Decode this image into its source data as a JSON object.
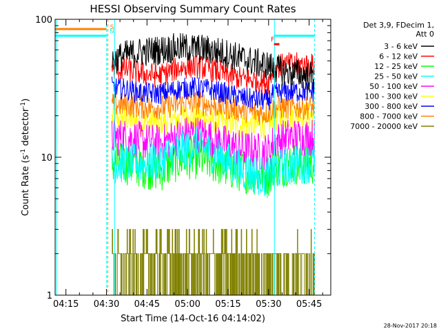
{
  "chart_data": {
    "type": "line",
    "title": "HESSI Observing Summary Count Rates",
    "xlabel": "Start Time (14-Oct-16 04:14:02)",
    "ylabel": "Count Rate (s⁻¹ detector⁻¹)",
    "x_scale": "time",
    "y_scale": "log",
    "xlim": [
      "04:11",
      "05:53"
    ],
    "ylim": [
      1,
      100
    ],
    "x_ticks": [
      "04:15",
      "04:30",
      "04:45",
      "05:00",
      "05:15",
      "05:30",
      "05:45"
    ],
    "y_ticks": [
      "1",
      "10",
      "100"
    ],
    "grid": false,
    "legend_title": [
      "Det 3,9, FDecim 1,",
      "Att 0"
    ],
    "legend_position": "top-right",
    "series": [
      {
        "name": "3 - 6 keV",
        "color": "#000000",
        "times": [
          "04:32",
          "04:37",
          "04:43",
          "04:50",
          "04:56",
          "05:02",
          "05:08",
          "05:14",
          "05:20",
          "05:26",
          "05:30",
          "05:32",
          "05:36",
          "05:42",
          "05:47"
        ],
        "values": [
          50,
          55,
          58,
          60,
          62,
          62,
          60,
          57,
          52,
          48,
          46,
          44,
          42,
          40,
          38
        ]
      },
      {
        "name": "6 - 12 keV",
        "color": "#ff0000",
        "times": [
          "04:32",
          "04:38",
          "04:44",
          "04:50",
          "04:56",
          "05:02",
          "05:08",
          "05:14",
          "05:20",
          "05:26",
          "05:30",
          "05:32",
          "05:37",
          "05:42",
          "05:47"
        ],
        "values": [
          44,
          43,
          40,
          39,
          44,
          46,
          44,
          40,
          37,
          36,
          35,
          45,
          47,
          47,
          46
        ]
      },
      {
        "name": "12 - 25 keV",
        "color": "#00ff00",
        "times": [
          "04:32",
          "04:38",
          "04:44",
          "04:50",
          "04:56",
          "05:02",
          "05:08",
          "05:14",
          "05:20",
          "05:26",
          "05:30",
          "05:32",
          "05:37",
          "05:42",
          "05:47"
        ],
        "values": [
          9,
          9,
          8.5,
          8,
          9.5,
          10,
          9.5,
          8.5,
          8,
          7.5,
          7.5,
          8.5,
          9,
          9,
          9
        ]
      },
      {
        "name": "25 - 50 keV",
        "color": "#00ffff",
        "times": [
          "04:32",
          "04:38",
          "04:44",
          "04:50",
          "04:56",
          "05:02",
          "05:08",
          "05:14",
          "05:20",
          "05:26",
          "05:30",
          "05:32",
          "05:37",
          "05:42",
          "05:47"
        ],
        "values": [
          9,
          9,
          9,
          9.5,
          11,
          12,
          11,
          9.5,
          8,
          7.5,
          7,
          8,
          8.5,
          9,
          9
        ]
      },
      {
        "name": "50 - 100 keV",
        "color": "#ff00ff",
        "times": [
          "04:32",
          "04:38",
          "04:44",
          "04:50",
          "04:56",
          "05:02",
          "05:08",
          "05:14",
          "05:20",
          "05:26",
          "05:30",
          "05:32",
          "05:37",
          "05:42",
          "05:47"
        ],
        "values": [
          14,
          14,
          13,
          12.5,
          14,
          15,
          14,
          12.5,
          11.5,
          11,
          11,
          13,
          14,
          14,
          14
        ]
      },
      {
        "name": "100 - 300 keV",
        "color": "#ffff00",
        "times": [
          "04:32",
          "04:38",
          "04:44",
          "04:50",
          "04:56",
          "05:02",
          "05:08",
          "05:14",
          "05:20",
          "05:26",
          "05:30",
          "05:32",
          "05:37",
          "05:42",
          "05:47"
        ],
        "values": [
          19,
          19,
          18,
          18,
          19,
          19.5,
          19,
          18,
          17,
          17,
          17,
          19,
          20,
          20,
          20
        ]
      },
      {
        "name": "300 - 800 keV",
        "color": "#0000ff",
        "times": [
          "04:32",
          "04:38",
          "04:44",
          "04:50",
          "04:56",
          "05:02",
          "05:08",
          "05:14",
          "05:20",
          "05:26",
          "05:30",
          "05:32",
          "05:37",
          "05:42",
          "05:47"
        ],
        "values": [
          32,
          31,
          29,
          29,
          31,
          32,
          31,
          29,
          27,
          26,
          26,
          29,
          30,
          30,
          30
        ]
      },
      {
        "name": "800 - 7000 keV",
        "color": "#ff8000",
        "times": [
          "04:32",
          "04:38",
          "04:44",
          "04:50",
          "04:56",
          "05:02",
          "05:08",
          "05:14",
          "05:20",
          "05:26",
          "05:30",
          "05:32",
          "05:37",
          "05:42",
          "05:47"
        ],
        "values": [
          24,
          24,
          23,
          23,
          24,
          25,
          24,
          23,
          22,
          21,
          21,
          23,
          23,
          23,
          23
        ]
      },
      {
        "name": "7000 - 20000 keV",
        "color": "#808000",
        "times": [
          "04:32",
          "04:38",
          "04:44",
          "04:50",
          "04:56",
          "05:02",
          "05:08",
          "05:14",
          "05:20",
          "05:26",
          "05:30",
          "05:32",
          "05:37",
          "05:42",
          "05:47"
        ],
        "values": [
          1.5,
          1.5,
          1.6,
          1.7,
          1.7,
          1.7,
          1.6,
          1.5,
          1.5,
          1.5,
          1.5,
          1.5,
          1.5,
          1.5,
          1.5
        ]
      }
    ],
    "annotations": [
      {
        "label": "S",
        "color": "#ff8000",
        "x": "04:30"
      },
      {
        "label": "N",
        "color": "#00ffff",
        "x": "04:30"
      },
      {
        "label": "F",
        "color": "#ff0000",
        "x": "05:33"
      }
    ],
    "markers": {
      "vertical_lines": [
        {
          "x": "04:11:30",
          "color": "#00ffff",
          "style": "solid"
        },
        {
          "x": "04:30:00",
          "color": "#00ffff",
          "style": "dashed"
        },
        {
          "x": "04:30:30",
          "color": "#ff8000",
          "style": "dashed"
        },
        {
          "x": "04:33:00",
          "color": "#00ffff",
          "style": "solid"
        },
        {
          "x": "05:32:10",
          "color": "#00ffff",
          "style": "solid"
        },
        {
          "x": "05:47:00",
          "color": "#00ffff",
          "style": "dashed"
        }
      ],
      "segments": [
        {
          "from": "04:11",
          "to": "04:30",
          "value": 85,
          "color": "#ff8000"
        },
        {
          "from": "04:11",
          "to": "04:30",
          "value": 76,
          "color": "#00ffff"
        },
        {
          "from": "05:32",
          "to": "05:47",
          "value": 76,
          "color": "#00ffff"
        },
        {
          "from": "05:32",
          "to": "05:34",
          "value": 66,
          "color": "#ff0000"
        }
      ]
    },
    "footer_timestamp": "28-Nov-2017 20:18"
  }
}
